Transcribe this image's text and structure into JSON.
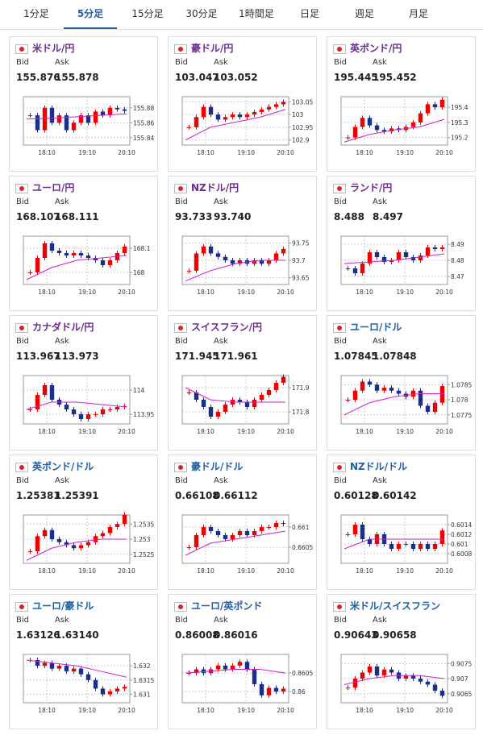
{
  "tabs": [
    {
      "label": "1分足",
      "active": false
    },
    {
      "label": "5分足",
      "active": true
    },
    {
      "label": "15分足",
      "active": false
    },
    {
      "label": "30分足",
      "active": false
    },
    {
      "label": "1時間足",
      "active": false
    },
    {
      "label": "日足",
      "active": false
    },
    {
      "label": "週足",
      "active": false
    },
    {
      "label": "月足",
      "active": false
    }
  ],
  "labels": {
    "bid": "Bid",
    "ask": "Ask"
  },
  "panels": [
    {
      "title": "米ドル/円",
      "title_color": "#6a2c91",
      "bid": "155.876",
      "ask": "155.878",
      "chart": {
        "type": "candlestick",
        "x": [
          "18:10",
          "19:10",
          "20:10"
        ],
        "ylim": [
          155.83,
          155.895
        ],
        "yticks": [
          155.84,
          155.86,
          155.88
        ],
        "closes": [
          155.87,
          155.85,
          155.88,
          155.86,
          155.87,
          155.85,
          155.86,
          155.87,
          155.86,
          155.875,
          155.87,
          155.88,
          155.878,
          155.876
        ],
        "ma": [
          155.865,
          155.866,
          155.868,
          155.87,
          155.872
        ]
      }
    },
    {
      "title": "豪ドル/円",
      "title_color": "#6a2c91",
      "bid": "103.047",
      "ask": "103.052",
      "chart": {
        "type": "candlestick",
        "x": [
          "18:10",
          "19:10",
          "20:10"
        ],
        "ylim": [
          102.88,
          103.07
        ],
        "yticks": [
          102.9,
          102.95,
          103,
          103.05
        ],
        "closes": [
          102.95,
          102.99,
          103.03,
          103.0,
          102.98,
          102.99,
          103.0,
          102.99,
          103.0,
          103.01,
          103.02,
          103.03,
          103.04,
          103.05
        ],
        "ma": [
          102.9,
          102.95,
          102.97,
          102.99,
          103.02
        ]
      }
    },
    {
      "title": "英ポンド/円",
      "title_color": "#6a2c91",
      "bid": "195.445",
      "ask": "195.452",
      "chart": {
        "type": "candlestick",
        "x": [
          "18:10",
          "19:10",
          "20:10"
        ],
        "ylim": [
          195.15,
          195.47
        ],
        "yticks": [
          195.2,
          195.3,
          195.4
        ],
        "closes": [
          195.2,
          195.27,
          195.33,
          195.28,
          195.25,
          195.24,
          195.26,
          195.25,
          195.27,
          195.3,
          195.36,
          195.42,
          195.4,
          195.45
        ],
        "ma": [
          195.17,
          195.22,
          195.25,
          195.27,
          195.32
        ]
      }
    },
    {
      "title": "ユーロ/円",
      "title_color": "#6a2c91",
      "bid": "168.107",
      "ask": "168.111",
      "chart": {
        "type": "candlestick",
        "x": [
          "18:10",
          "19:10",
          "20:10"
        ],
        "ylim": [
          167.95,
          168.15
        ],
        "yticks": [
          168,
          168.1
        ],
        "closes": [
          168.0,
          168.06,
          168.12,
          168.09,
          168.08,
          168.07,
          168.08,
          168.07,
          168.06,
          168.05,
          168.03,
          168.05,
          168.08,
          168.107
        ],
        "ma": [
          167.97,
          168.02,
          168.05,
          168.06,
          168.07
        ]
      }
    },
    {
      "title": "NZドル/円",
      "title_color": "#6a2c91",
      "bid": "93.733",
      "ask": "93.740",
      "chart": {
        "type": "candlestick",
        "x": [
          "18:10",
          "19:10",
          "20:10"
        ],
        "ylim": [
          93.63,
          93.77
        ],
        "yticks": [
          93.65,
          93.7,
          93.75
        ],
        "closes": [
          93.67,
          93.72,
          93.74,
          93.72,
          93.71,
          93.7,
          93.69,
          93.7,
          93.69,
          93.7,
          93.69,
          93.7,
          93.72,
          93.733
        ],
        "ma": [
          93.64,
          93.67,
          93.69,
          93.7,
          93.7
        ]
      }
    },
    {
      "title": "ランド/円",
      "title_color": "#6a2c91",
      "bid": "8.488",
      "ask": "8.497",
      "chart": {
        "type": "candlestick",
        "x": [
          "18:10",
          "19:10",
          "20:10"
        ],
        "ylim": [
          8.465,
          8.495
        ],
        "yticks": [
          8.47,
          8.48,
          8.49
        ],
        "closes": [
          8.475,
          8.472,
          8.478,
          8.485,
          8.482,
          8.479,
          8.48,
          8.485,
          8.482,
          8.48,
          8.483,
          8.488,
          8.487,
          8.488
        ],
        "ma": [
          8.478,
          8.479,
          8.48,
          8.482,
          8.484
        ]
      }
    },
    {
      "title": "カナダドル/円",
      "title_color": "#6a2c91",
      "bid": "113.967",
      "ask": "113.973",
      "chart": {
        "type": "candlestick",
        "x": [
          "18:10",
          "19:10",
          "20:10"
        ],
        "ylim": [
          113.93,
          114.03
        ],
        "yticks": [
          113.95,
          114
        ],
        "closes": [
          113.96,
          113.99,
          114.01,
          113.98,
          113.97,
          113.96,
          113.95,
          113.94,
          113.95,
          113.95,
          113.96,
          113.96,
          113.965,
          113.967
        ],
        "ma": [
          113.96,
          113.975,
          113.975,
          113.97,
          113.965
        ]
      }
    },
    {
      "title": "スイスフラン/円",
      "title_color": "#6a2c91",
      "bid": "171.945",
      "ask": "171.961",
      "chart": {
        "type": "candlestick",
        "x": [
          "18:10",
          "19:10",
          "20:10"
        ],
        "ylim": [
          171.75,
          171.95
        ],
        "yticks": [
          171.8,
          171.9
        ],
        "closes": [
          171.88,
          171.85,
          171.82,
          171.78,
          171.8,
          171.83,
          171.85,
          171.84,
          171.82,
          171.85,
          171.87,
          171.89,
          171.92,
          171.945
        ],
        "ma": [
          171.9,
          171.85,
          171.84,
          171.84,
          171.84
        ]
      }
    },
    {
      "title": "ユーロ/ドル",
      "title_color": "#1f5fa8",
      "bid": "1.07845",
      "ask": "1.07848",
      "chart": {
        "type": "candlestick",
        "x": [
          "18:10",
          "19:10",
          "20:10"
        ],
        "ylim": [
          1.0772,
          1.0788
        ],
        "yticks": [
          1.0775,
          1.078,
          1.0785
        ],
        "closes": [
          1.078,
          1.0783,
          1.0786,
          1.0785,
          1.0783,
          1.0784,
          1.0783,
          1.0782,
          1.0781,
          1.0783,
          1.0778,
          1.0776,
          1.0779,
          1.07845
        ],
        "ma": [
          1.0775,
          1.0779,
          1.0781,
          1.0782,
          1.0782
        ]
      }
    },
    {
      "title": "英ポンド/ドル",
      "title_color": "#1f5fa8",
      "bid": "1.25381",
      "ask": "1.25391",
      "chart": {
        "type": "candlestick",
        "x": [
          "18:10",
          "19:10",
          "20:10"
        ],
        "ylim": [
          1.2522,
          1.2538
        ],
        "yticks": [
          1.2525,
          1.253,
          1.2535
        ],
        "closes": [
          1.2526,
          1.2531,
          1.2533,
          1.253,
          1.2529,
          1.2528,
          1.2527,
          1.2528,
          1.2529,
          1.2531,
          1.2532,
          1.2534,
          1.2535,
          1.25381
        ],
        "ma": [
          1.2523,
          1.2527,
          1.2529,
          1.253,
          1.253
        ]
      }
    },
    {
      "title": "豪ドル/ドル",
      "title_color": "#1f5fa8",
      "bid": "0.66108",
      "ask": "0.66112",
      "chart": {
        "type": "candlestick",
        "x": [
          "18:10",
          "19:10",
          "20:10"
        ],
        "ylim": [
          0.6601,
          0.6613
        ],
        "yticks": [
          0.6605,
          0.661
        ],
        "closes": [
          0.6605,
          0.6608,
          0.661,
          0.6609,
          0.6608,
          0.6607,
          0.6608,
          0.6609,
          0.6608,
          0.6609,
          0.661,
          0.661,
          0.6611,
          0.66108
        ],
        "ma": [
          0.6603,
          0.6606,
          0.6607,
          0.6608,
          0.6609
        ]
      }
    },
    {
      "title": "NZドル/ドル",
      "title_color": "#1f5fa8",
      "bid": "0.60128",
      "ask": "0.60142",
      "chart": {
        "type": "candlestick",
        "x": [
          "18:10",
          "19:10",
          "20:10"
        ],
        "ylim": [
          0.6006,
          0.6016
        ],
        "yticks": [
          0.6008,
          0.601,
          0.6012,
          0.6014
        ],
        "closes": [
          0.6012,
          0.6014,
          0.6011,
          0.601,
          0.6012,
          0.601,
          0.6009,
          0.601,
          0.601,
          0.6009,
          0.601,
          0.6009,
          0.601,
          0.60128
        ],
        "ma": [
          0.6009,
          0.6011,
          0.6011,
          0.6011,
          0.6011
        ]
      }
    },
    {
      "title": "ユーロ/豪ドル",
      "title_color": "#1f5fa8",
      "bid": "1.63126",
      "ask": "1.63140",
      "chart": {
        "type": "candlestick",
        "x": [
          "18:10",
          "19:10",
          "20:10"
        ],
        "ylim": [
          1.6307,
          1.6324
        ],
        "yticks": [
          1.631,
          1.6315,
          1.632
        ],
        "closes": [
          1.6322,
          1.632,
          1.6321,
          1.6319,
          1.632,
          1.6318,
          1.6319,
          1.6317,
          1.6315,
          1.6312,
          1.631,
          1.6311,
          1.6312,
          1.63126
        ],
        "ma": [
          1.6322,
          1.6321,
          1.632,
          1.6318,
          1.6316
        ]
      }
    },
    {
      "title": "ユーロ/英ポンド",
      "title_color": "#1f5fa8",
      "bid": "0.86008",
      "ask": "0.86016",
      "chart": {
        "type": "candlestick",
        "x": [
          "18:10",
          "19:10",
          "20:10"
        ],
        "ylim": [
          0.8597,
          0.861
        ],
        "yticks": [
          0.86,
          0.8605
        ],
        "closes": [
          0.8605,
          0.8606,
          0.8605,
          0.8606,
          0.8607,
          0.8606,
          0.8607,
          0.8608,
          0.8606,
          0.8602,
          0.8599,
          0.8601,
          0.86,
          0.86008
        ],
        "ma": [
          0.8605,
          0.86055,
          0.8606,
          0.8606,
          0.8605
        ]
      }
    },
    {
      "title": "米ドル/スイスフラン",
      "title_color": "#1f5fa8",
      "bid": "0.90643",
      "ask": "0.90658",
      "chart": {
        "type": "candlestick",
        "x": [
          "18:10",
          "19:10",
          "20:10"
        ],
        "ylim": [
          0.9062,
          0.9078
        ],
        "yticks": [
          0.9065,
          0.907,
          0.9075
        ],
        "closes": [
          0.9067,
          0.907,
          0.9072,
          0.9074,
          0.9071,
          0.9073,
          0.9072,
          0.907,
          0.9071,
          0.907,
          0.9069,
          0.9068,
          0.9066,
          0.90643
        ],
        "ma": [
          0.9068,
          0.907,
          0.9071,
          0.9071,
          0.907
        ]
      }
    }
  ]
}
